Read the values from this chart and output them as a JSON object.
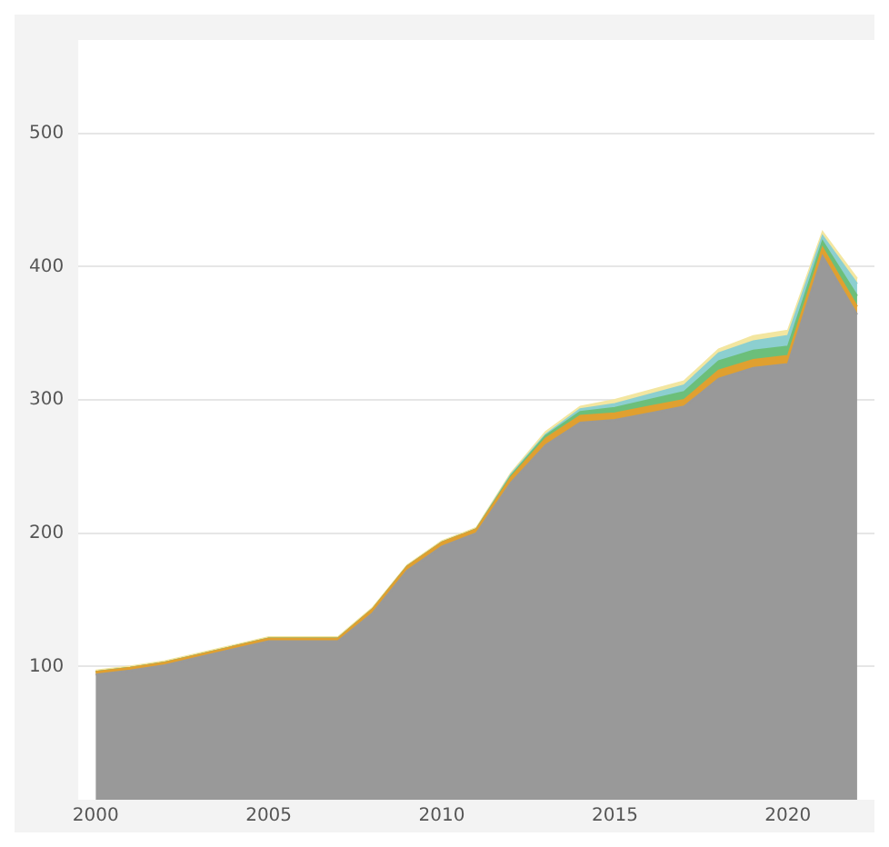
{
  "chart_data": {
    "type": "area",
    "stacked": true,
    "x": [
      2000,
      2001,
      2002,
      2003,
      2004,
      2005,
      2006,
      2007,
      2008,
      2009,
      2010,
      2011,
      2012,
      2013,
      2014,
      2015,
      2016,
      2017,
      2018,
      2019,
      2020,
      2021,
      2022
    ],
    "series": [
      {
        "color": "#999999",
        "values": [
          94,
          97,
          101,
          107,
          113,
          119,
          119,
          119,
          140,
          172,
          190,
          200,
          238,
          266,
          283,
          285,
          290,
          295,
          316,
          324,
          327,
          408,
          364
        ]
      },
      {
        "color": "#e0a030",
        "values": [
          2,
          2,
          2,
          2,
          2,
          2,
          2,
          2,
          3,
          3,
          3,
          3,
          4,
          5,
          5,
          5,
          5,
          5,
          6,
          6,
          6,
          6,
          6
        ]
      },
      {
        "color": "#6cbf7a",
        "values": [
          0,
          0,
          0,
          0,
          0,
          0,
          0,
          0,
          0,
          0,
          0,
          0,
          1,
          2,
          3,
          4,
          5,
          6,
          7,
          7,
          7,
          5,
          8
        ]
      },
      {
        "color": "#8ccfd0",
        "values": [
          0,
          0,
          0,
          0,
          0,
          0,
          0,
          0,
          0,
          0,
          0,
          0,
          1,
          1,
          2,
          3,
          4,
          5,
          6,
          7,
          8,
          4,
          9
        ]
      },
      {
        "color": "#f3e6a0",
        "values": [
          1,
          1,
          1,
          1,
          1,
          1,
          1,
          1,
          1,
          1,
          1,
          1,
          1,
          2,
          2,
          3,
          3,
          3,
          3,
          4,
          4,
          3,
          4
        ]
      }
    ],
    "xlim": [
      1999.5,
      2022.5
    ],
    "xticks": [
      2000,
      2005,
      2010,
      2015,
      2020
    ],
    "ylim": [
      0,
      570
    ],
    "yticks": [
      100,
      200,
      300,
      400,
      500
    ],
    "grid": "y",
    "legend": false,
    "marker": "none"
  }
}
